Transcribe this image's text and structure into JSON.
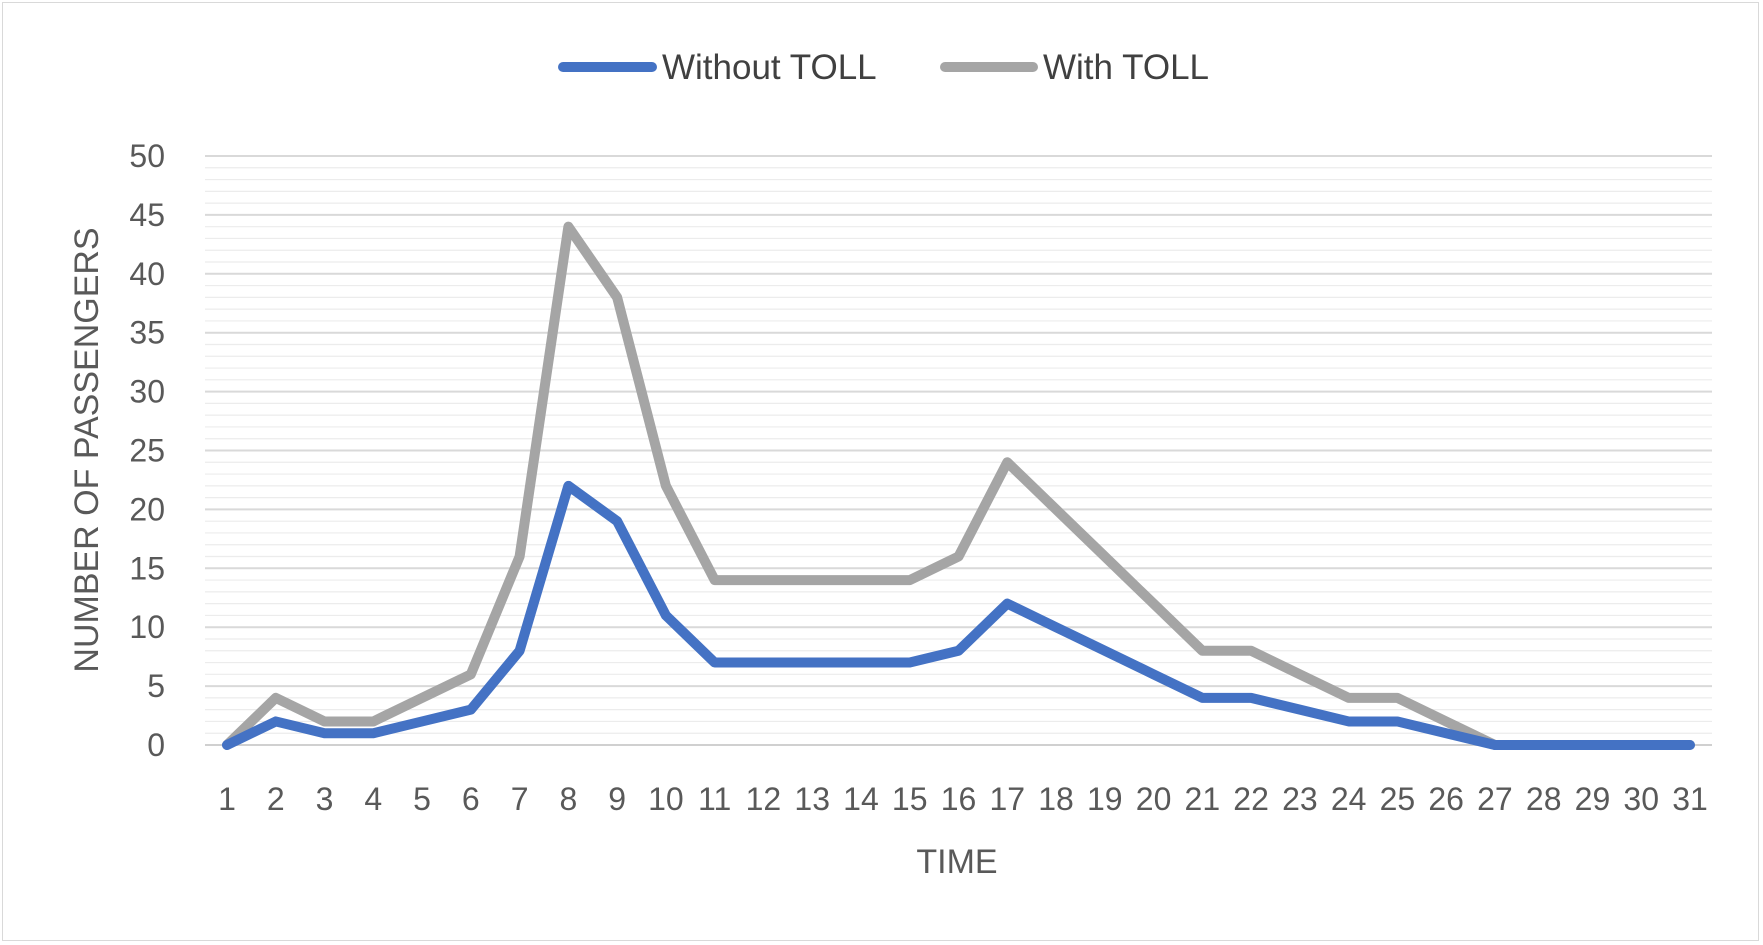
{
  "chart_data": {
    "type": "line",
    "title": "",
    "xlabel": "TIME",
    "ylabel": "NUMBER OF PASSENGERS",
    "categories": [
      "1",
      "2",
      "3",
      "4",
      "5",
      "6",
      "7",
      "8",
      "9",
      "10",
      "11",
      "12",
      "13",
      "14",
      "15",
      "16",
      "17",
      "18",
      "19",
      "20",
      "21",
      "22",
      "23",
      "24",
      "25",
      "26",
      "27",
      "28",
      "29",
      "30",
      "31"
    ],
    "ylim": [
      0,
      50
    ],
    "yticks": [
      "0",
      "5",
      "10",
      "15",
      "20",
      "25",
      "30",
      "35",
      "40",
      "45",
      "50"
    ],
    "grid": true,
    "legend_position": "top-center",
    "series": [
      {
        "name": "Without TOLL",
        "color": "#4472c4",
        "values": [
          0,
          2,
          1,
          1,
          2,
          3,
          8,
          22,
          19,
          11,
          7,
          7,
          7,
          7,
          7,
          8,
          12,
          10,
          8,
          6,
          4,
          4,
          3,
          2,
          2,
          1,
          0,
          0,
          0,
          0,
          0
        ]
      },
      {
        "name": "With TOLL",
        "color": "#a5a5a5",
        "values": [
          0,
          4,
          2,
          2,
          4,
          6,
          16,
          44,
          38,
          22,
          14,
          14,
          14,
          14,
          14,
          16,
          24,
          20,
          16,
          12,
          8,
          8,
          6,
          4,
          4,
          2,
          0,
          0,
          0,
          0,
          0
        ]
      }
    ]
  }
}
